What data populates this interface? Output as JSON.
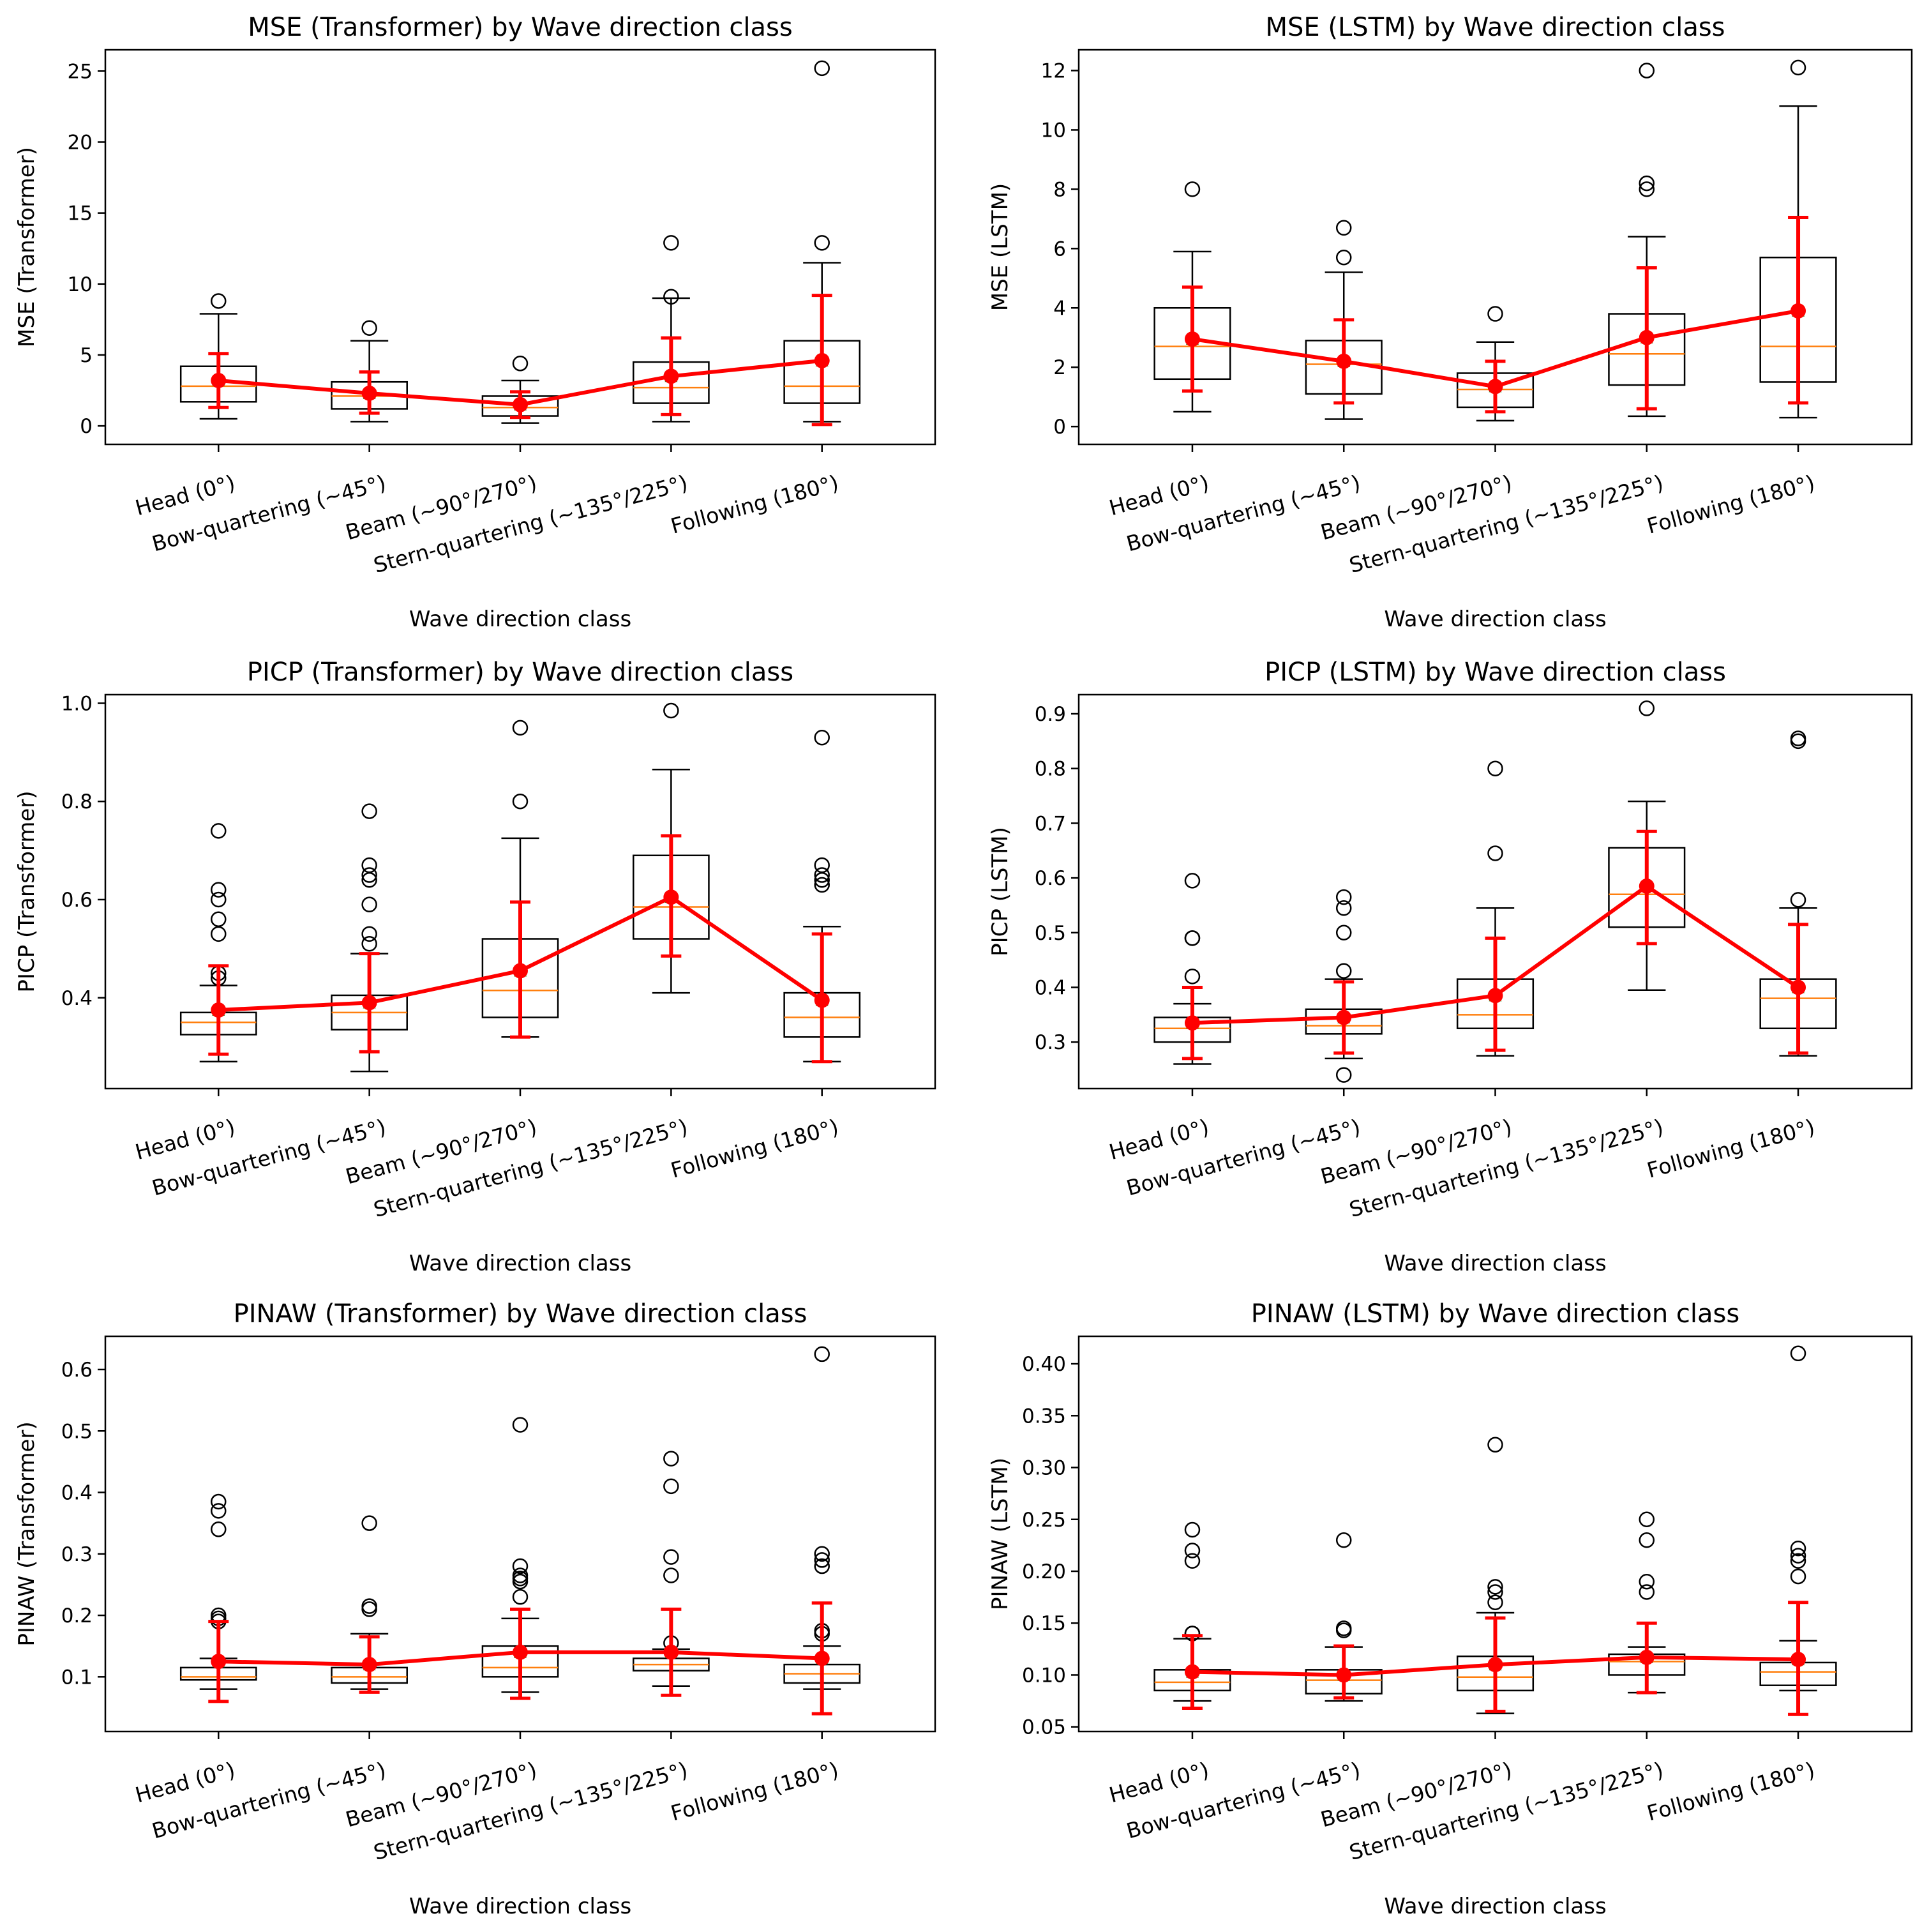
{
  "colors": {
    "box": "#000000",
    "median": "#ff7f0e",
    "mean_marker": "#2ca02c",
    "errorbar": "#ff0000",
    "flier": "#000000"
  },
  "chart_data": [
    {
      "type": "box",
      "title": "MSE (Transformer) by Wave direction class",
      "xlabel": "Wave direction class",
      "ylabel": "MSE (Transformer)",
      "ylim": [
        -1.3,
        26.5
      ],
      "yticks": [
        0,
        5,
        10,
        15,
        20,
        25
      ],
      "tick_labels": [
        "0",
        "5",
        "10",
        "15",
        "20",
        "25"
      ],
      "categories": [
        "Head (0°)",
        "Bow-quartering (~45°)",
        "Beam (~90°/270°)",
        "Stern-quartering (~135°/225°)",
        "Following (180°)"
      ],
      "boxes": [
        {
          "whislo": 0.5,
          "q1": 1.7,
          "med": 2.8,
          "q3": 4.2,
          "whishi": 7.9,
          "fliers": [
            8.8
          ]
        },
        {
          "whislo": 0.3,
          "q1": 1.2,
          "med": 2.1,
          "q3": 3.1,
          "whishi": 6.0,
          "fliers": [
            6.9
          ]
        },
        {
          "whislo": 0.2,
          "q1": 0.7,
          "med": 1.3,
          "q3": 2.1,
          "whishi": 3.2,
          "fliers": [
            4.4
          ]
        },
        {
          "whislo": 0.3,
          "q1": 1.6,
          "med": 2.7,
          "q3": 4.5,
          "whishi": 9.0,
          "fliers": [
            9.1,
            12.9
          ]
        },
        {
          "whislo": 0.3,
          "q1": 1.6,
          "med": 2.8,
          "q3": 6.0,
          "whishi": 11.5,
          "fliers": [
            12.9,
            25.2
          ]
        }
      ],
      "means": [
        3.2,
        2.3,
        1.5,
        3.5,
        4.6
      ],
      "err_lo": [
        1.3,
        0.9,
        0.6,
        0.8,
        0.1
      ],
      "err_hi": [
        5.1,
        3.8,
        2.4,
        6.2,
        9.2
      ]
    },
    {
      "type": "box",
      "title": "MSE (LSTM) by Wave direction class",
      "xlabel": "Wave direction class",
      "ylabel": "MSE (LSTM)",
      "ylim": [
        -0.6,
        12.7
      ],
      "yticks": [
        0,
        2,
        4,
        6,
        8,
        10,
        12
      ],
      "tick_labels": [
        "0",
        "2",
        "4",
        "6",
        "8",
        "10",
        "12"
      ],
      "categories": [
        "Head (0°)",
        "Bow-quartering (~45°)",
        "Beam (~90°/270°)",
        "Stern-quartering (~135°/225°)",
        "Following (180°)"
      ],
      "boxes": [
        {
          "whislo": 0.5,
          "q1": 1.6,
          "med": 2.7,
          "q3": 4.0,
          "whishi": 5.9,
          "fliers": [
            8.0
          ]
        },
        {
          "whislo": 0.25,
          "q1": 1.1,
          "med": 2.1,
          "q3": 2.9,
          "whishi": 5.2,
          "fliers": [
            5.7,
            6.7
          ]
        },
        {
          "whislo": 0.2,
          "q1": 0.65,
          "med": 1.25,
          "q3": 1.8,
          "whishi": 2.85,
          "fliers": [
            3.8
          ]
        },
        {
          "whislo": 0.35,
          "q1": 1.4,
          "med": 2.45,
          "q3": 3.8,
          "whishi": 6.4,
          "fliers": [
            8.0,
            8.2,
            12.0
          ]
        },
        {
          "whislo": 0.3,
          "q1": 1.5,
          "med": 2.7,
          "q3": 5.7,
          "whishi": 10.8,
          "fliers": [
            12.1
          ]
        }
      ],
      "means": [
        2.95,
        2.2,
        1.35,
        3.0,
        3.9
      ],
      "err_lo": [
        1.2,
        0.8,
        0.5,
        0.6,
        0.8
      ],
      "err_hi": [
        4.7,
        3.6,
        2.2,
        5.35,
        7.05
      ]
    },
    {
      "type": "box",
      "title": "PICP (Transformer) by Wave direction class",
      "xlabel": "Wave direction class",
      "ylabel": "PICP (Transformer)",
      "ylim": [
        0.215,
        1.0175
      ],
      "yticks": [
        0.4,
        0.6,
        0.8,
        1.0
      ],
      "tick_labels": [
        "0.4",
        "0.6",
        "0.8",
        "1.0"
      ],
      "categories": [
        "Head (0°)",
        "Bow-quartering (~45°)",
        "Beam (~90°/270°)",
        "Stern-quartering (~135°/225°)",
        "Following (180°)"
      ],
      "boxes": [
        {
          "whislo": 0.27,
          "q1": 0.325,
          "med": 0.35,
          "q3": 0.37,
          "whishi": 0.425,
          "fliers": [
            0.44,
            0.45,
            0.53,
            0.56,
            0.6,
            0.62,
            0.74
          ]
        },
        {
          "whislo": 0.25,
          "q1": 0.335,
          "med": 0.37,
          "q3": 0.405,
          "whishi": 0.49,
          "fliers": [
            0.51,
            0.53,
            0.59,
            0.64,
            0.65,
            0.67,
            0.78
          ]
        },
        {
          "whislo": 0.32,
          "q1": 0.36,
          "med": 0.415,
          "q3": 0.52,
          "whishi": 0.725,
          "fliers": [
            0.8,
            0.95
          ]
        },
        {
          "whislo": 0.41,
          "q1": 0.52,
          "med": 0.585,
          "q3": 0.69,
          "whishi": 0.865,
          "fliers": [
            0.985
          ]
        },
        {
          "whislo": 0.27,
          "q1": 0.32,
          "med": 0.36,
          "q3": 0.41,
          "whishi": 0.545,
          "fliers": [
            0.63,
            0.64,
            0.65,
            0.67,
            0.93
          ]
        }
      ],
      "means": [
        0.375,
        0.39,
        0.455,
        0.605,
        0.395
      ],
      "err_lo": [
        0.285,
        0.29,
        0.32,
        0.485,
        0.27
      ],
      "err_hi": [
        0.465,
        0.49,
        0.595,
        0.73,
        0.53
      ]
    },
    {
      "type": "box",
      "title": "PICP (LSTM) by Wave direction class",
      "xlabel": "Wave direction class",
      "ylabel": "PICP (LSTM)",
      "ylim": [
        0.215,
        0.935
      ],
      "yticks": [
        0.3,
        0.4,
        0.5,
        0.6,
        0.7,
        0.8,
        0.9
      ],
      "tick_labels": [
        "0.3",
        "0.4",
        "0.5",
        "0.6",
        "0.7",
        "0.8",
        "0.9"
      ],
      "categories": [
        "Head (0°)",
        "Bow-quartering (~45°)",
        "Beam (~90°/270°)",
        "Stern-quartering (~135°/225°)",
        "Following (180°)"
      ],
      "boxes": [
        {
          "whislo": 0.26,
          "q1": 0.3,
          "med": 0.325,
          "q3": 0.345,
          "whishi": 0.37,
          "fliers": [
            0.42,
            0.49,
            0.49,
            0.595
          ]
        },
        {
          "whislo": 0.27,
          "q1": 0.315,
          "med": 0.33,
          "q3": 0.36,
          "whishi": 0.415,
          "fliers": [
            0.24,
            0.43,
            0.5,
            0.545,
            0.565
          ]
        },
        {
          "whislo": 0.275,
          "q1": 0.325,
          "med": 0.35,
          "q3": 0.415,
          "whishi": 0.545,
          "fliers": [
            0.645,
            0.8
          ]
        },
        {
          "whislo": 0.395,
          "q1": 0.51,
          "med": 0.57,
          "q3": 0.655,
          "whishi": 0.74,
          "fliers": [
            0.91
          ]
        },
        {
          "whislo": 0.275,
          "q1": 0.325,
          "med": 0.38,
          "q3": 0.415,
          "whishi": 0.545,
          "fliers": [
            0.56,
            0.85,
            0.855
          ]
        }
      ],
      "means": [
        0.335,
        0.345,
        0.385,
        0.585,
        0.4
      ],
      "err_lo": [
        0.27,
        0.28,
        0.285,
        0.48,
        0.28
      ],
      "err_hi": [
        0.4,
        0.41,
        0.49,
        0.685,
        0.515
      ]
    },
    {
      "type": "box",
      "title": "PINAW (Transformer) by Wave direction class",
      "xlabel": "Wave direction class",
      "ylabel": "PINAW (Transformer)",
      "ylim": [
        0.011,
        0.654
      ],
      "yticks": [
        0.1,
        0.2,
        0.3,
        0.4,
        0.5,
        0.6
      ],
      "tick_labels": [
        "0.1",
        "0.2",
        "0.3",
        "0.4",
        "0.5",
        "0.6"
      ],
      "categories": [
        "Head (0°)",
        "Bow-quartering (~45°)",
        "Beam (~90°/270°)",
        "Stern-quartering (~135°/225°)",
        "Following (180°)"
      ],
      "boxes": [
        {
          "whislo": 0.08,
          "q1": 0.095,
          "med": 0.1,
          "q3": 0.115,
          "whishi": 0.13,
          "fliers": [
            0.19,
            0.195,
            0.2,
            0.34,
            0.37,
            0.385
          ]
        },
        {
          "whislo": 0.08,
          "q1": 0.09,
          "med": 0.1,
          "q3": 0.115,
          "whishi": 0.17,
          "fliers": [
            0.21,
            0.215,
            0.35
          ]
        },
        {
          "whislo": 0.075,
          "q1": 0.1,
          "med": 0.115,
          "q3": 0.15,
          "whishi": 0.195,
          "fliers": [
            0.23,
            0.255,
            0.26,
            0.265,
            0.28,
            0.51
          ]
        },
        {
          "whislo": 0.085,
          "q1": 0.11,
          "med": 0.12,
          "q3": 0.13,
          "whishi": 0.145,
          "fliers": [
            0.155,
            0.265,
            0.295,
            0.41,
            0.455
          ]
        },
        {
          "whislo": 0.08,
          "q1": 0.09,
          "med": 0.105,
          "q3": 0.12,
          "whishi": 0.15,
          "fliers": [
            0.17,
            0.175,
            0.28,
            0.29,
            0.3,
            0.625
          ]
        }
      ],
      "means": [
        0.125,
        0.12,
        0.14,
        0.14,
        0.13
      ],
      "err_lo": [
        0.06,
        0.075,
        0.065,
        0.07,
        0.04
      ],
      "err_hi": [
        0.19,
        0.165,
        0.21,
        0.21,
        0.22
      ]
    },
    {
      "type": "box",
      "title": "PINAW (LSTM) by Wave direction class",
      "xlabel": "Wave direction class",
      "ylabel": "PINAW (LSTM)",
      "ylim": [
        0.0455,
        0.4265
      ],
      "yticks": [
        0.05,
        0.1,
        0.15,
        0.2,
        0.25,
        0.3,
        0.35,
        0.4
      ],
      "tick_labels": [
        "0.05",
        "0.10",
        "0.15",
        "0.20",
        "0.25",
        "0.30",
        "0.35",
        "0.40"
      ],
      "categories": [
        "Head (0°)",
        "Bow-quartering (~45°)",
        "Beam (~90°/270°)",
        "Stern-quartering (~135°/225°)",
        "Following (180°)"
      ],
      "boxes": [
        {
          "whislo": 0.075,
          "q1": 0.085,
          "med": 0.093,
          "q3": 0.105,
          "whishi": 0.135,
          "fliers": [
            0.14,
            0.14,
            0.21,
            0.22,
            0.24
          ]
        },
        {
          "whislo": 0.075,
          "q1": 0.082,
          "med": 0.095,
          "q3": 0.105,
          "whishi": 0.127,
          "fliers": [
            0.143,
            0.145,
            0.23
          ]
        },
        {
          "whislo": 0.063,
          "q1": 0.085,
          "med": 0.098,
          "q3": 0.118,
          "whishi": 0.16,
          "fliers": [
            0.17,
            0.18,
            0.185,
            0.322
          ]
        },
        {
          "whislo": 0.083,
          "q1": 0.1,
          "med": 0.113,
          "q3": 0.12,
          "whishi": 0.127,
          "fliers": [
            0.18,
            0.19,
            0.23,
            0.25
          ]
        },
        {
          "whislo": 0.085,
          "q1": 0.09,
          "med": 0.103,
          "q3": 0.112,
          "whishi": 0.133,
          "fliers": [
            0.195,
            0.21,
            0.215,
            0.222,
            0.41
          ]
        }
      ],
      "means": [
        0.103,
        0.1,
        0.11,
        0.117,
        0.115
      ],
      "err_lo": [
        0.068,
        0.078,
        0.065,
        0.083,
        0.062
      ],
      "err_hi": [
        0.138,
        0.128,
        0.155,
        0.15,
        0.17
      ]
    }
  ]
}
